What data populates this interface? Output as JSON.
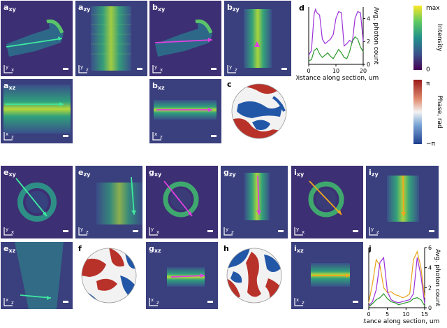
{
  "panels": {
    "a_xy": {
      "letter": "a",
      "sub": "xy"
    },
    "a_zy": {
      "letter": "a",
      "sub": "zy"
    },
    "a_xz": {
      "letter": "a",
      "sub": "xz"
    },
    "b_xy": {
      "letter": "b",
      "sub": "xy"
    },
    "b_zy": {
      "letter": "b",
      "sub": "zy"
    },
    "b_xz": {
      "letter": "b",
      "sub": "xz"
    },
    "c": {
      "letter": "c"
    },
    "d": {
      "letter": "d"
    },
    "e_xy": {
      "letter": "e",
      "sub": "xy"
    },
    "e_zy": {
      "letter": "e",
      "sub": "zy"
    },
    "e_xz": {
      "letter": "e",
      "sub": "xz"
    },
    "f": {
      "letter": "f"
    },
    "g_xy": {
      "letter": "g",
      "sub": "xy"
    },
    "g_zy": {
      "letter": "g",
      "sub": "zy"
    },
    "g_xz": {
      "letter": "g",
      "sub": "xz"
    },
    "h": {
      "letter": "h"
    },
    "i_xy": {
      "letter": "i",
      "sub": "xy"
    },
    "i_zy": {
      "letter": "i",
      "sub": "zy"
    },
    "i_xz": {
      "letter": "i",
      "sub": "xz"
    },
    "j": {
      "letter": "j"
    }
  },
  "axis_labels": {
    "x": "x",
    "y": "y",
    "z": "z"
  },
  "colorbars": {
    "intensity": {
      "label": "Intensity",
      "top": "max",
      "bottom": "0"
    },
    "phase": {
      "label": "Phase, rad",
      "top": "π",
      "bottom": "−π"
    }
  },
  "chart_data": [
    {
      "id": "d",
      "type": "line",
      "xlabel": "Distance along section, um",
      "ylabel": "Avg. photon count",
      "xlim": [
        0,
        20
      ],
      "ylim": [
        0,
        5
      ],
      "xticks": [
        0,
        10,
        20
      ],
      "yticks": [
        0,
        2,
        4
      ],
      "series": [
        {
          "color": "#9b30d9",
          "x": [
            0,
            1,
            2,
            2.5,
            3,
            4,
            5,
            6,
            7,
            8,
            9,
            10,
            11,
            12,
            13,
            14,
            15,
            16,
            17,
            18,
            19,
            20
          ],
          "values": [
            0.8,
            1.2,
            4.4,
            4.8,
            4.5,
            4.3,
            2.2,
            1.8,
            2.0,
            2.2,
            2.6,
            4.0,
            4.6,
            4.5,
            1.6,
            1.8,
            2.1,
            1.9,
            4.0,
            4.6,
            4.5,
            2.0
          ]
        },
        {
          "color": "#2a9a2a",
          "x": [
            0,
            1,
            2,
            3,
            4,
            5,
            6,
            7,
            8,
            9,
            10,
            11,
            12,
            13,
            14,
            15,
            16,
            17,
            18,
            19,
            20
          ],
          "values": [
            0.3,
            0.4,
            1.2,
            1.4,
            0.9,
            0.6,
            0.8,
            1.0,
            0.7,
            0.5,
            0.9,
            1.3,
            1.0,
            0.6,
            0.5,
            1.1,
            2.0,
            2.4,
            2.2,
            1.5,
            1.1
          ]
        }
      ]
    },
    {
      "id": "j",
      "type": "line",
      "xlabel": "Distance along section, um",
      "ylabel": "Avg. photon count",
      "xlim": [
        0,
        15
      ],
      "ylim": [
        0,
        6
      ],
      "xticks": [
        0,
        5,
        10,
        15
      ],
      "yticks": [
        0,
        2,
        4,
        6
      ],
      "series": [
        {
          "color": "#e8a21a",
          "x": [
            0,
            1,
            2,
            3,
            4,
            5,
            6,
            7,
            8,
            9,
            10,
            11,
            12,
            13,
            14,
            15
          ],
          "values": [
            0.5,
            2.4,
            4.8,
            4.2,
            2.0,
            1.5,
            1.6,
            1.3,
            1.2,
            1.0,
            1.1,
            1.4,
            4.8,
            5.6,
            4.0,
            1.0
          ]
        },
        {
          "color": "#9b30d9",
          "x": [
            0,
            1,
            2,
            3,
            4,
            5,
            6,
            7,
            8,
            9,
            10,
            11,
            12,
            13,
            14,
            15
          ],
          "values": [
            0.2,
            0.6,
            1.8,
            4.5,
            5.0,
            1.6,
            0.8,
            0.6,
            0.5,
            0.6,
            0.7,
            0.8,
            1.4,
            5.0,
            3.2,
            0.4
          ]
        },
        {
          "color": "#2a9a2a",
          "x": [
            0,
            1,
            2,
            3,
            4,
            5,
            6,
            7,
            8,
            9,
            10,
            11,
            12,
            13,
            14,
            15
          ],
          "values": [
            0.1,
            0.4,
            0.8,
            1.0,
            1.4,
            0.9,
            0.6,
            0.5,
            0.3,
            0.4,
            0.5,
            0.6,
            0.9,
            1.0,
            0.8,
            0.2
          ]
        }
      ]
    }
  ]
}
